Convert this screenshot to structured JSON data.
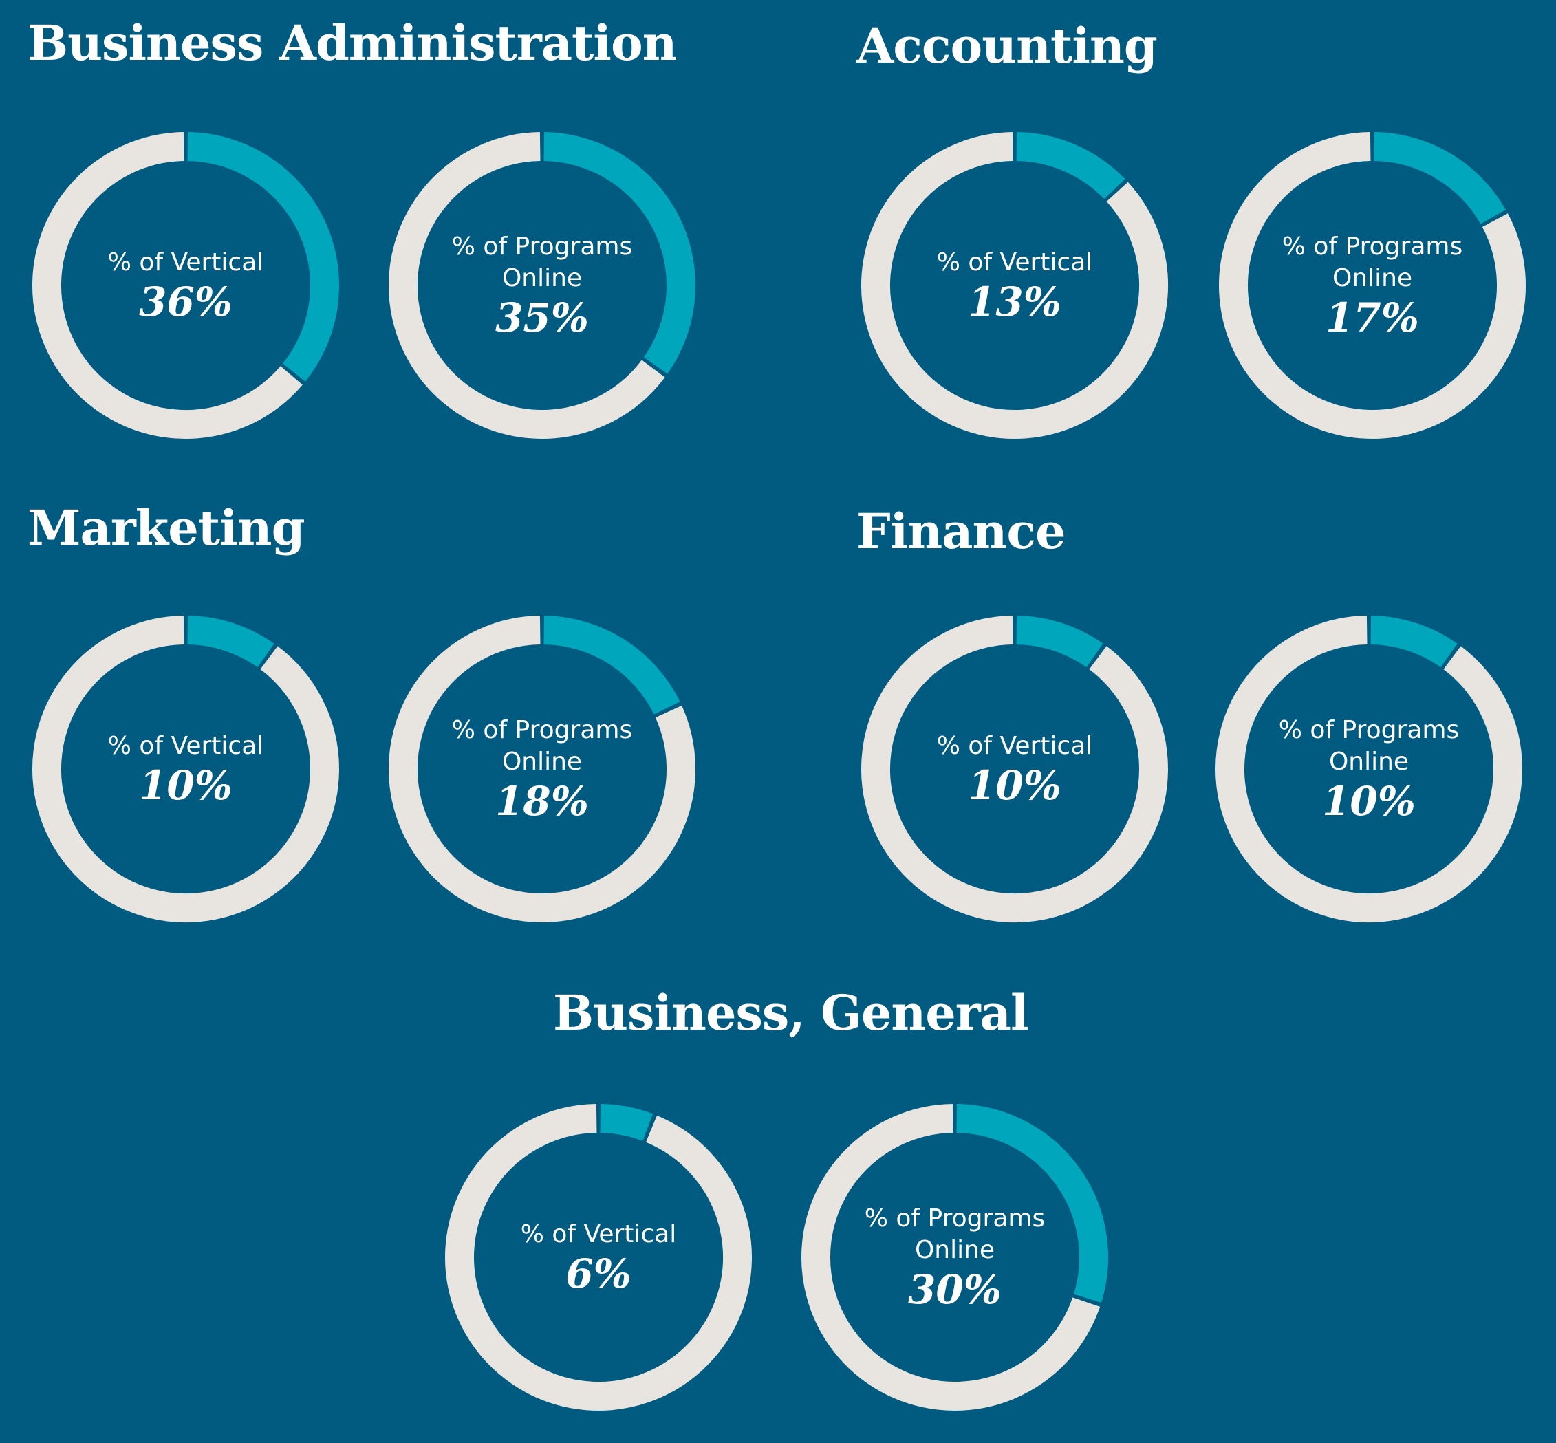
{
  "chart_data": [
    {
      "type": "pie",
      "title": "Business Administration",
      "charts": [
        {
          "label": "% of Vertical",
          "value": 36,
          "display": "36%"
        },
        {
          "label": "% of Programs Online",
          "value": 35,
          "display": "35%"
        }
      ]
    },
    {
      "type": "pie",
      "title": "Accounting",
      "charts": [
        {
          "label": "% of Vertical",
          "value": 13,
          "display": "13%"
        },
        {
          "label": "% of Programs Online",
          "value": 17,
          "display": "17%"
        }
      ]
    },
    {
      "type": "pie",
      "title": "Marketing",
      "charts": [
        {
          "label": "% of Vertical",
          "value": 10,
          "display": "10%"
        },
        {
          "label": "% of Programs Online",
          "value": 18,
          "display": "18%"
        }
      ]
    },
    {
      "type": "pie",
      "title": "Finance",
      "charts": [
        {
          "label": "% of Vertical",
          "value": 10,
          "display": "10%"
        },
        {
          "label": "% of Programs Online",
          "value": 10,
          "display": "10%"
        }
      ]
    },
    {
      "type": "pie",
      "title": "Business, General",
      "charts": [
        {
          "label": "% of Vertical",
          "value": 6,
          "display": "6%"
        },
        {
          "label": "% of Programs Online",
          "value": 30,
          "display": "30%"
        }
      ]
    }
  ],
  "colors": {
    "background": "#015b80",
    "highlight": "#00a6bb",
    "remainder": "#e8e4df",
    "text": "#ffffff"
  }
}
